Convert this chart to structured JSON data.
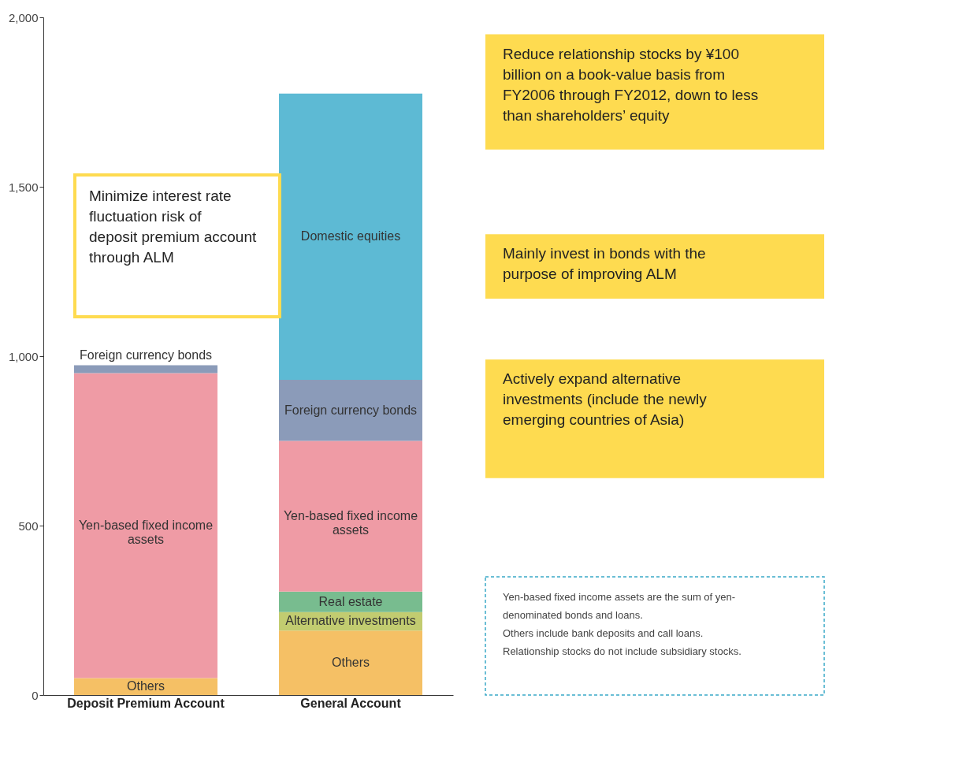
{
  "chart_data": {
    "type": "bar",
    "stacked": true,
    "categories": [
      "Deposit Premium Account",
      "General Account"
    ],
    "series": [
      {
        "name": "Others",
        "color": "#f5c065",
        "values": [
          50,
          190
        ]
      },
      {
        "name": "Alternative investments",
        "color": "#c2cc70",
        "values": [
          null,
          55
        ]
      },
      {
        "name": "Real estate",
        "color": "#78bc8f",
        "values": [
          null,
          60
        ]
      },
      {
        "name": "Yen-based fixed income assets",
        "color": "#ef9ba5",
        "values": [
          900,
          445
        ]
      },
      {
        "name": "Foreign currency bonds",
        "color": "#8b9bb9",
        "values": [
          23,
          180
        ]
      },
      {
        "name": "Domestic equities",
        "color": "#5dbad4",
        "values": [
          null,
          845
        ]
      }
    ],
    "ylim": [
      0,
      2000
    ],
    "yticks": [
      0,
      500,
      {
        "value": 1000,
        "label": "1,000"
      },
      {
        "value": 1500,
        "label": "1,500"
      },
      {
        "value": 2000,
        "label": "2,000"
      }
    ],
    "grid": false,
    "legend": false,
    "annotations": [
      "Minimize interest rate fluctuation risk of deposit premium account through ALM",
      "Reduce relationship stocks by ¥100 billion on a book-value basis from FY2006 through FY2012, down to less than shareholders’ equity",
      "Mainly invest in bonds with the purpose of improving ALM",
      "Actively expand alternative investments (include the newly emerging countries of Asia)",
      "Yen-based fixed income assets are the sum of yen-denominated bonds and loans.",
      "Others include bank deposits and call loans.",
      "Relationship stocks do not include subsidiary stocks."
    ]
  }
}
